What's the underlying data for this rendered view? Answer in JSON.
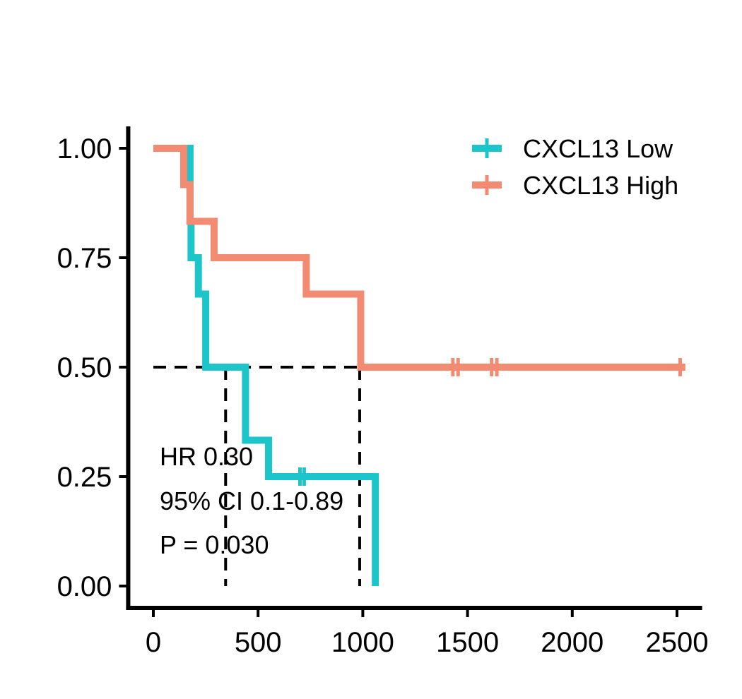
{
  "chart_data": {
    "type": "line",
    "subtype": "kaplan-meier",
    "title": "",
    "xlabel": "",
    "ylabel": "",
    "xlim": [
      -120,
      2620
    ],
    "ylim": [
      -0.05,
      1.05
    ],
    "x_ticks": [
      0,
      500,
      1000,
      1500,
      2000,
      2500
    ],
    "y_ticks": [
      0.0,
      0.25,
      0.5,
      0.75,
      1.0
    ],
    "x_tick_labels": [
      "0",
      "500",
      "1000",
      "1500",
      "2000",
      "2500"
    ],
    "y_tick_labels": [
      "0.00",
      "0.25",
      "0.50",
      "0.75",
      "1.00"
    ],
    "grid": false,
    "legend_position": "top-right",
    "series": [
      {
        "name": "CXCL13 Low",
        "color": "#1CC5C9",
        "steps": [
          [
            0,
            1.0
          ],
          [
            175,
            0.833
          ],
          [
            180,
            0.75
          ],
          [
            215,
            0.667
          ],
          [
            250,
            0.5
          ],
          [
            440,
            0.333
          ],
          [
            550,
            0.25
          ],
          [
            1060,
            0.0
          ]
        ],
        "end_x": 1060,
        "censored": [
          [
            700,
            0.25
          ],
          [
            720,
            0.25
          ]
        ]
      },
      {
        "name": "CXCL13 High",
        "color": "#F28B72",
        "steps": [
          [
            0,
            1.0
          ],
          [
            145,
            0.917
          ],
          [
            175,
            0.833
          ],
          [
            290,
            0.75
          ],
          [
            730,
            0.667
          ],
          [
            990,
            0.5
          ]
        ],
        "end_x": 2540,
        "censored": [
          [
            1430,
            0.5
          ],
          [
            1455,
            0.5
          ],
          [
            1615,
            0.5
          ],
          [
            1640,
            0.5
          ],
          [
            2515,
            0.5
          ]
        ]
      }
    ],
    "median_lines": {
      "y": 0.5,
      "x_start": 0,
      "medians": [
        345,
        985
      ],
      "style": "dashed"
    },
    "annotations": [
      "HR 0.30",
      "95% CI 0.1-0.89",
      "P = 0.030"
    ]
  }
}
